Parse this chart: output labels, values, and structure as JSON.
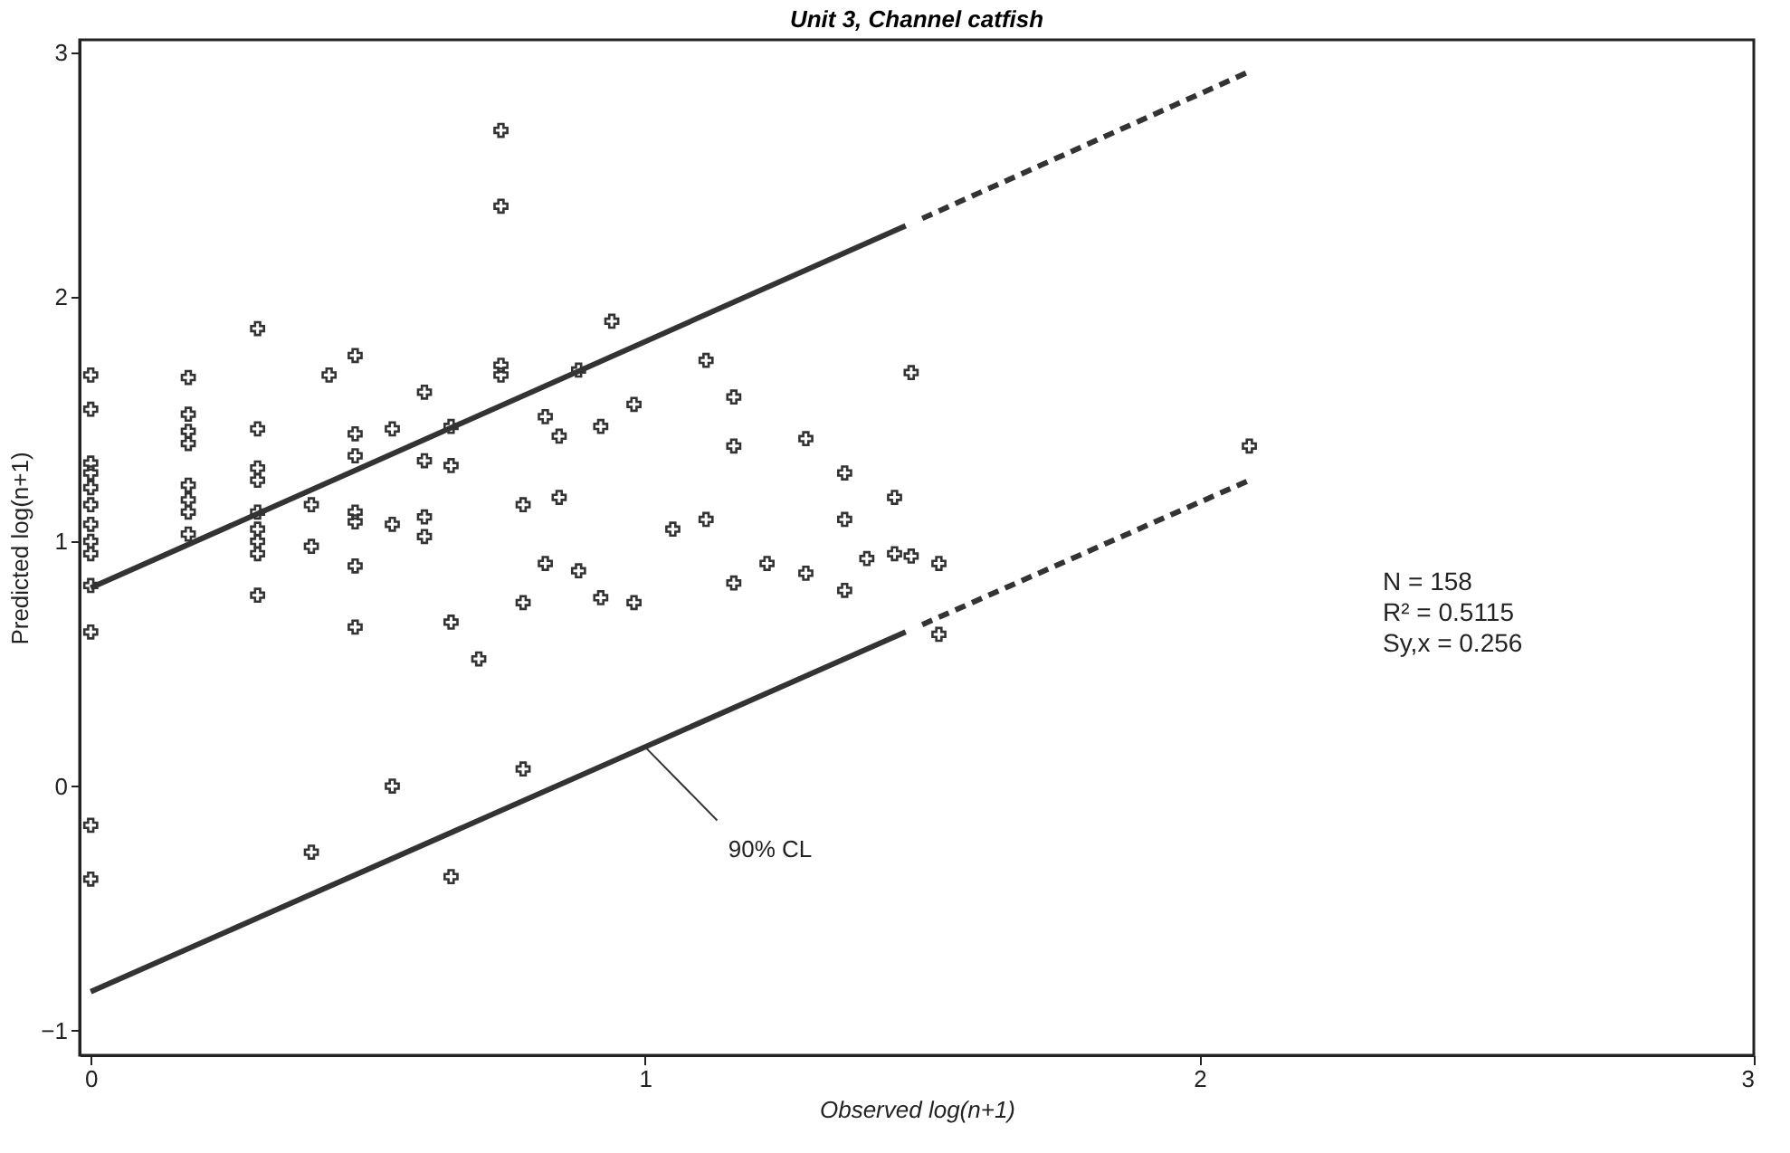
{
  "chart_data": {
    "type": "scatter",
    "title": "Unit 3, Channel catfish",
    "xlabel": "Observed log(n+1)",
    "ylabel": "Predicted log(n+1)",
    "xlim": [
      -0.02,
      3.0
    ],
    "ylim": [
      -1.1,
      3.05
    ],
    "xticks": [
      0,
      1,
      2,
      3
    ],
    "yticks": [
      -1,
      0,
      1,
      2,
      3
    ],
    "grid": false,
    "series": [
      {
        "color": "#333333",
        "marker": "cross",
        "x": [
          0,
          0,
          0,
          0,
          0,
          0,
          0,
          0,
          0,
          0,
          0,
          0,
          0,
          0.176,
          0.176,
          0.176,
          0.176,
          0.176,
          0.176,
          0.176,
          0.176,
          0.301,
          0.301,
          0.301,
          0.301,
          0.301,
          0.301,
          0.301,
          0.301,
          0.301,
          0.398,
          0.398,
          0.398,
          0.43,
          0.477,
          0.477,
          0.477,
          0.477,
          0.477,
          0.477,
          0.477,
          0.544,
          0.544,
          0.544,
          0.602,
          0.602,
          0.602,
          0.602,
          0.65,
          0.65,
          0.65,
          0.65,
          0.7,
          0.74,
          0.74,
          0.74,
          0.74,
          0.78,
          0.78,
          0.78,
          0.82,
          0.82,
          0.845,
          0.845,
          0.88,
          0.88,
          0.92,
          0.92,
          0.94,
          0.98,
          0.98,
          1.05,
          1.11,
          1.11,
          1.16,
          1.16,
          1.16,
          1.22,
          1.29,
          1.29,
          1.36,
          1.36,
          1.36,
          1.4,
          1.45,
          1.45,
          1.48,
          1.48,
          1.53,
          1.53,
          2.09
        ],
        "values": [
          1.68,
          1.54,
          1.32,
          1.28,
          1.22,
          1.15,
          1.07,
          1.0,
          0.95,
          0.82,
          0.63,
          -0.16,
          -0.38,
          1.67,
          1.52,
          1.45,
          1.4,
          1.23,
          1.17,
          1.12,
          1.03,
          1.87,
          1.46,
          1.3,
          1.25,
          1.12,
          1.05,
          1.0,
          0.95,
          0.78,
          1.15,
          0.98,
          -0.27,
          1.68,
          1.76,
          1.44,
          1.35,
          1.12,
          1.08,
          0.9,
          0.65,
          1.46,
          1.07,
          0.0,
          1.61,
          1.33,
          1.1,
          1.02,
          1.47,
          1.31,
          0.67,
          -0.37,
          0.52,
          2.68,
          2.37,
          1.72,
          1.68,
          1.15,
          0.75,
          0.07,
          1.51,
          0.91,
          1.43,
          1.18,
          1.7,
          0.88,
          1.47,
          0.77,
          1.9,
          1.56,
          0.75,
          1.05,
          1.74,
          1.09,
          1.59,
          1.39,
          0.83,
          0.91,
          1.42,
          0.87,
          1.28,
          1.09,
          0.8,
          0.93,
          1.18,
          0.95,
          1.69,
          0.94,
          0.91,
          0.62,
          1.39
        ]
      },
      {
        "type": "line",
        "color": "#333333",
        "line_style": "solid",
        "x": [
          0,
          1.47
        ],
        "values": [
          0.81,
          2.29
        ]
      },
      {
        "type": "line",
        "color": "#333333",
        "line_style": "dashed",
        "x": [
          1.5,
          2.09
        ],
        "values": [
          2.32,
          2.92
        ]
      },
      {
        "type": "line",
        "color": "#333333",
        "line_style": "solid",
        "x": [
          0,
          1.47
        ],
        "values": [
          -0.84,
          0.63
        ]
      },
      {
        "type": "line",
        "color": "#333333",
        "line_style": "dashed",
        "x": [
          1.5,
          2.09
        ],
        "values": [
          0.66,
          1.25
        ]
      }
    ],
    "annotations": [
      {
        "text": "90% CL",
        "x": 1.0,
        "y": 0.16
      },
      "N = 158",
      "R² = 0.5115",
      "Sy,x = 0.256"
    ]
  }
}
